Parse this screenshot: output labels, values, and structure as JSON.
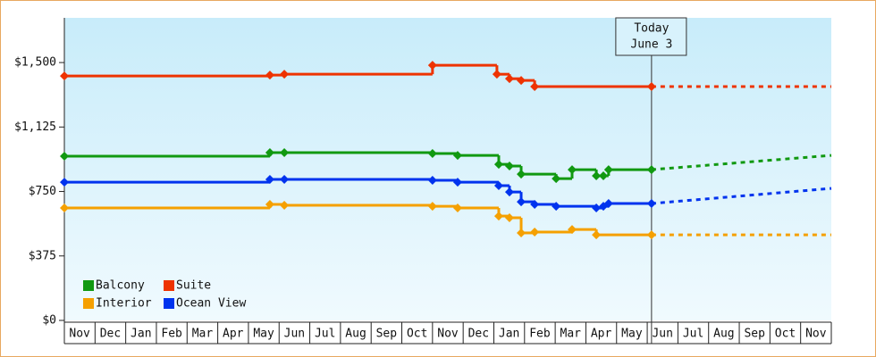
{
  "chart_data": {
    "type": "step-line",
    "categories": [
      "Nov",
      "Dec",
      "Jan",
      "Feb",
      "Mar",
      "Apr",
      "May",
      "Jun",
      "Jul",
      "Aug",
      "Sep",
      "Oct",
      "Nov",
      "Dec",
      "Jan",
      "Feb",
      "Mar",
      "Apr",
      "May",
      "Jun",
      "Jul",
      "Aug",
      "Sep",
      "Oct",
      "Nov"
    ],
    "xlim": [
      0,
      25
    ],
    "ylim": [
      0,
      1760
    ],
    "yticks": [
      {
        "value": 0,
        "label": "$0"
      },
      {
        "value": 375,
        "label": "$375"
      },
      {
        "value": 750,
        "label": "$750"
      },
      {
        "value": 1125,
        "label": "$1,125"
      },
      {
        "value": 1500,
        "label": "$1,500"
      }
    ],
    "today_label": [
      "Today",
      "June 3"
    ],
    "today_x": 19.14,
    "forecast_x": [
      19.14,
      25
    ],
    "legend": "lower-left",
    "series": [
      {
        "name": "Balcony",
        "color": "#119911",
        "x": [
          0,
          6.7,
          7.17,
          12.0,
          12.82,
          14.16,
          14.51,
          14.89,
          16.03,
          16.55,
          17.34,
          17.57,
          17.74,
          19.14
        ],
        "values": [
          955,
          976,
          976,
          971,
          960,
          908,
          898,
          851,
          825,
          877,
          841,
          841,
          877,
          877
        ],
        "forecast": [
          877,
          960
        ]
      },
      {
        "name": "Suite",
        "color": "#ee3300",
        "x": [
          0,
          6.7,
          7.17,
          12.0,
          14.1,
          14.51,
          14.89,
          15.33,
          19.14
        ],
        "values": [
          1422,
          1427,
          1432,
          1484,
          1432,
          1406,
          1396,
          1360,
          1360
        ],
        "forecast": [
          1360,
          1360
        ]
      },
      {
        "name": "Interior",
        "color": "#f5a000",
        "x": [
          0,
          6.7,
          7.17,
          12.0,
          12.82,
          14.16,
          14.51,
          14.89,
          15.33,
          16.55,
          17.34,
          19.14
        ],
        "values": [
          654,
          675,
          670,
          664,
          654,
          607,
          597,
          509,
          514,
          529,
          498,
          498
        ],
        "forecast": [
          498,
          498
        ]
      },
      {
        "name": "Ocean View",
        "color": "#0033ee",
        "x": [
          0,
          6.7,
          7.17,
          12.0,
          12.82,
          14.16,
          14.51,
          14.89,
          15.33,
          16.03,
          17.34,
          17.57,
          17.74,
          19.14
        ],
        "values": [
          804,
          820,
          820,
          815,
          804,
          784,
          747,
          690,
          675,
          664,
          654,
          664,
          680,
          680
        ],
        "forecast": [
          680,
          768
        ]
      }
    ]
  }
}
